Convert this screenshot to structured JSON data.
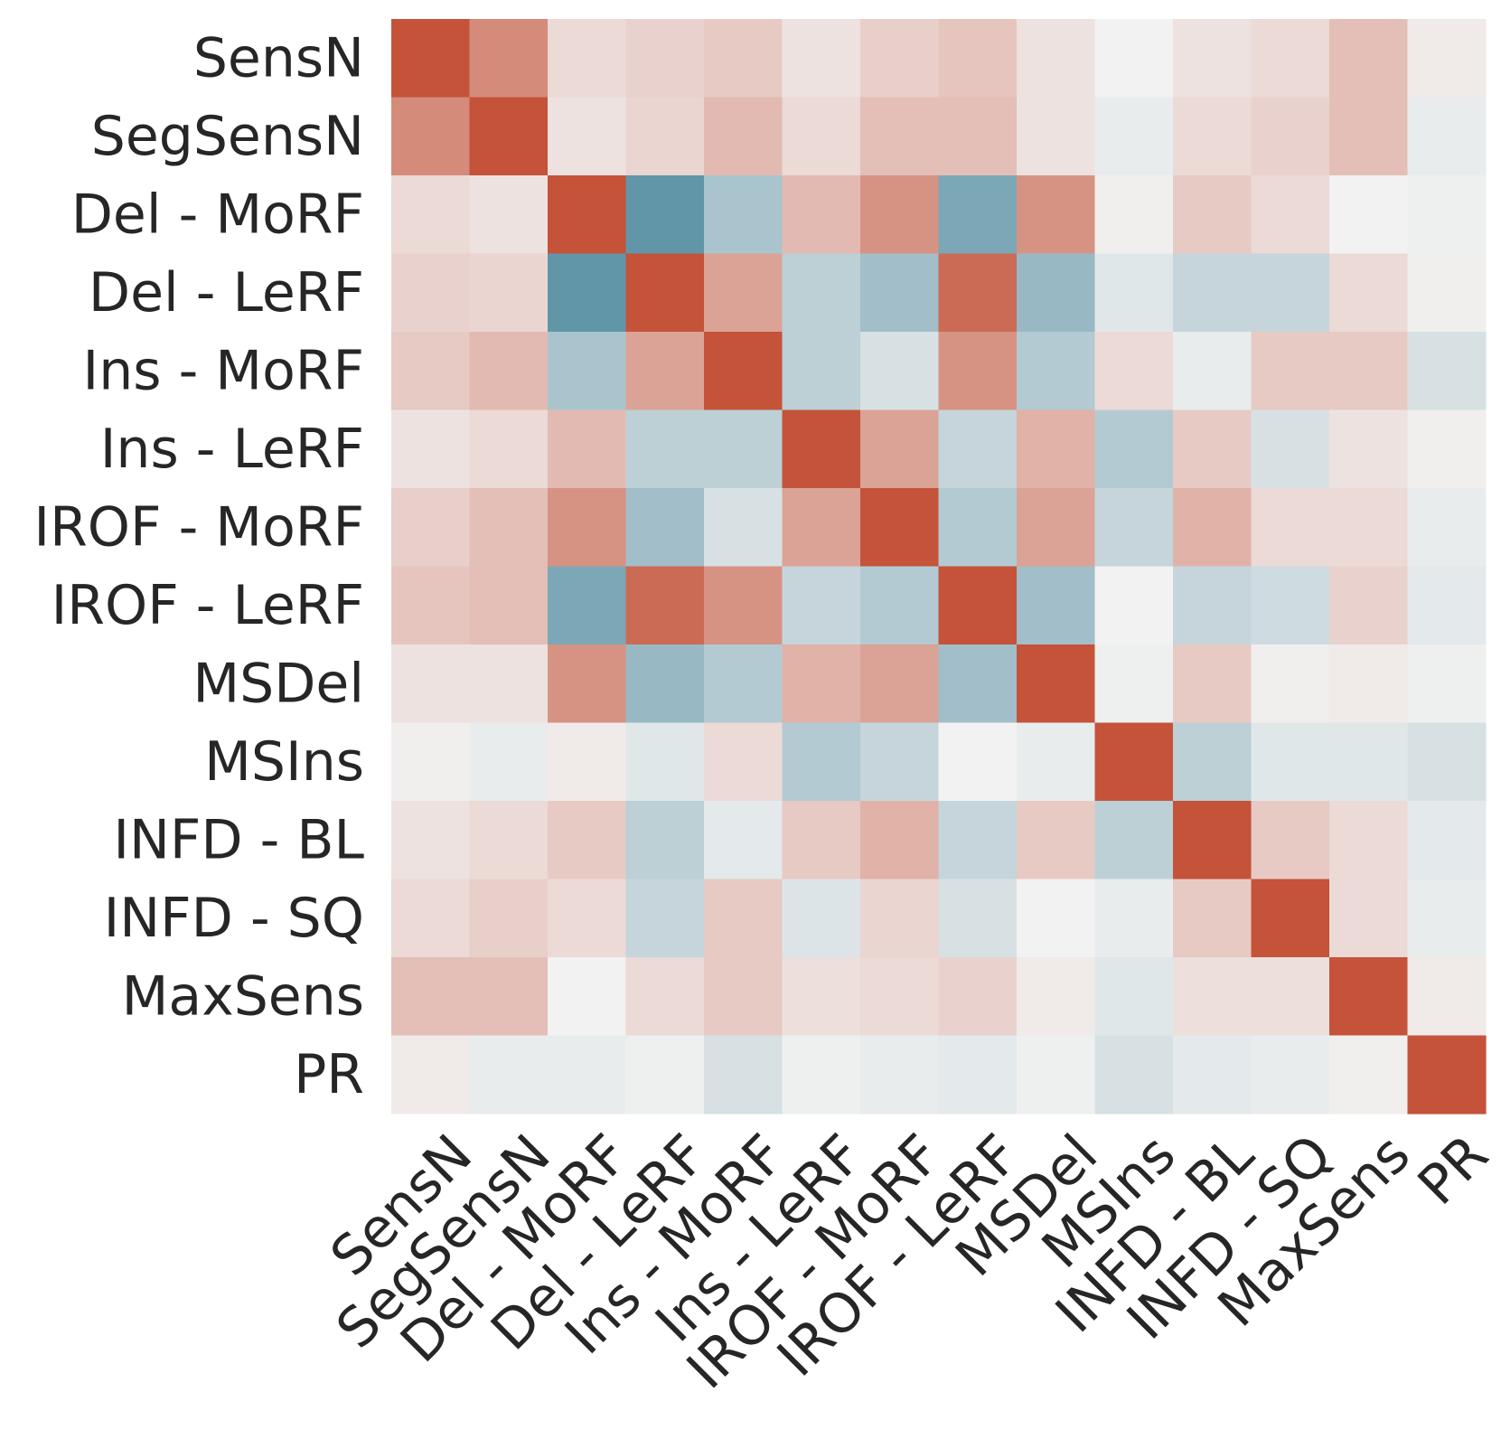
{
  "chart_data": {
    "type": "heatmap",
    "title": "",
    "xlabel": "",
    "ylabel": "",
    "labels": [
      "SensN",
      "SegSensN",
      "Del - MoRF",
      "Del - LeRF",
      "Ins - MoRF",
      "Ins - LeRF",
      "IROF - MoRF",
      "IROF - LeRF",
      "MSDel",
      "MSIns",
      "INFD - BL",
      "INFD - SQ",
      "MaxSens",
      "PR"
    ],
    "value_range": [
      -1,
      1
    ],
    "colormap": {
      "negative": "#3d7f96",
      "zero": "#f2f2f2",
      "positive": "#c4533a"
    },
    "colorbar": false,
    "matrix": [
      [
        1.0,
        0.65,
        0.15,
        0.2,
        0.25,
        0.1,
        0.22,
        0.28,
        0.1,
        0.0,
        0.1,
        0.15,
        0.32,
        0.05
      ],
      [
        0.65,
        1.0,
        0.1,
        0.18,
        0.35,
        0.15,
        0.32,
        0.32,
        0.1,
        -0.05,
        0.15,
        0.2,
        0.32,
        -0.05
      ],
      [
        0.15,
        0.1,
        1.0,
        -0.8,
        -0.4,
        0.35,
        0.6,
        -0.65,
        0.6,
        0.02,
        0.25,
        0.15,
        0.0,
        -0.02
      ],
      [
        0.2,
        0.18,
        -0.8,
        1.0,
        0.5,
        -0.3,
        -0.45,
        0.85,
        -0.5,
        -0.1,
        -0.25,
        -0.25,
        0.15,
        0.02
      ],
      [
        0.25,
        0.35,
        -0.4,
        0.5,
        1.0,
        -0.3,
        -0.15,
        0.6,
        -0.35,
        0.15,
        -0.05,
        0.25,
        0.25,
        -0.15
      ],
      [
        0.1,
        0.15,
        0.35,
        -0.3,
        -0.3,
        1.0,
        0.5,
        -0.25,
        0.4,
        -0.35,
        0.25,
        -0.15,
        0.1,
        0.02
      ],
      [
        0.22,
        0.32,
        0.6,
        -0.45,
        -0.15,
        0.5,
        1.0,
        -0.35,
        0.5,
        -0.25,
        0.4,
        0.15,
        0.15,
        -0.05
      ],
      [
        0.28,
        0.32,
        -0.65,
        0.85,
        0.6,
        -0.25,
        -0.35,
        1.0,
        -0.45,
        0.0,
        -0.25,
        -0.2,
        0.2,
        -0.08
      ],
      [
        0.1,
        0.1,
        0.6,
        -0.5,
        -0.35,
        0.4,
        0.5,
        -0.45,
        1.0,
        -0.02,
        0.25,
        0.02,
        0.05,
        -0.02
      ],
      [
        0.02,
        -0.05,
        0.05,
        -0.1,
        0.15,
        -0.35,
        -0.25,
        0.0,
        -0.05,
        1.0,
        -0.3,
        -0.1,
        -0.1,
        -0.15
      ],
      [
        0.1,
        0.15,
        0.25,
        -0.3,
        -0.08,
        0.25,
        0.4,
        -0.25,
        0.25,
        -0.3,
        1.0,
        0.25,
        0.15,
        -0.08
      ],
      [
        0.15,
        0.22,
        0.15,
        -0.25,
        0.25,
        -0.12,
        0.18,
        -0.15,
        0.0,
        -0.05,
        0.25,
        1.0,
        0.15,
        -0.05
      ],
      [
        0.32,
        0.32,
        0.0,
        0.15,
        0.25,
        0.12,
        0.15,
        0.2,
        0.05,
        -0.1,
        0.12,
        0.12,
        1.0,
        0.05
      ],
      [
        0.05,
        -0.05,
        -0.05,
        -0.02,
        -0.15,
        -0.02,
        -0.05,
        -0.08,
        -0.02,
        -0.15,
        -0.08,
        -0.05,
        0.02,
        1.0
      ]
    ]
  }
}
